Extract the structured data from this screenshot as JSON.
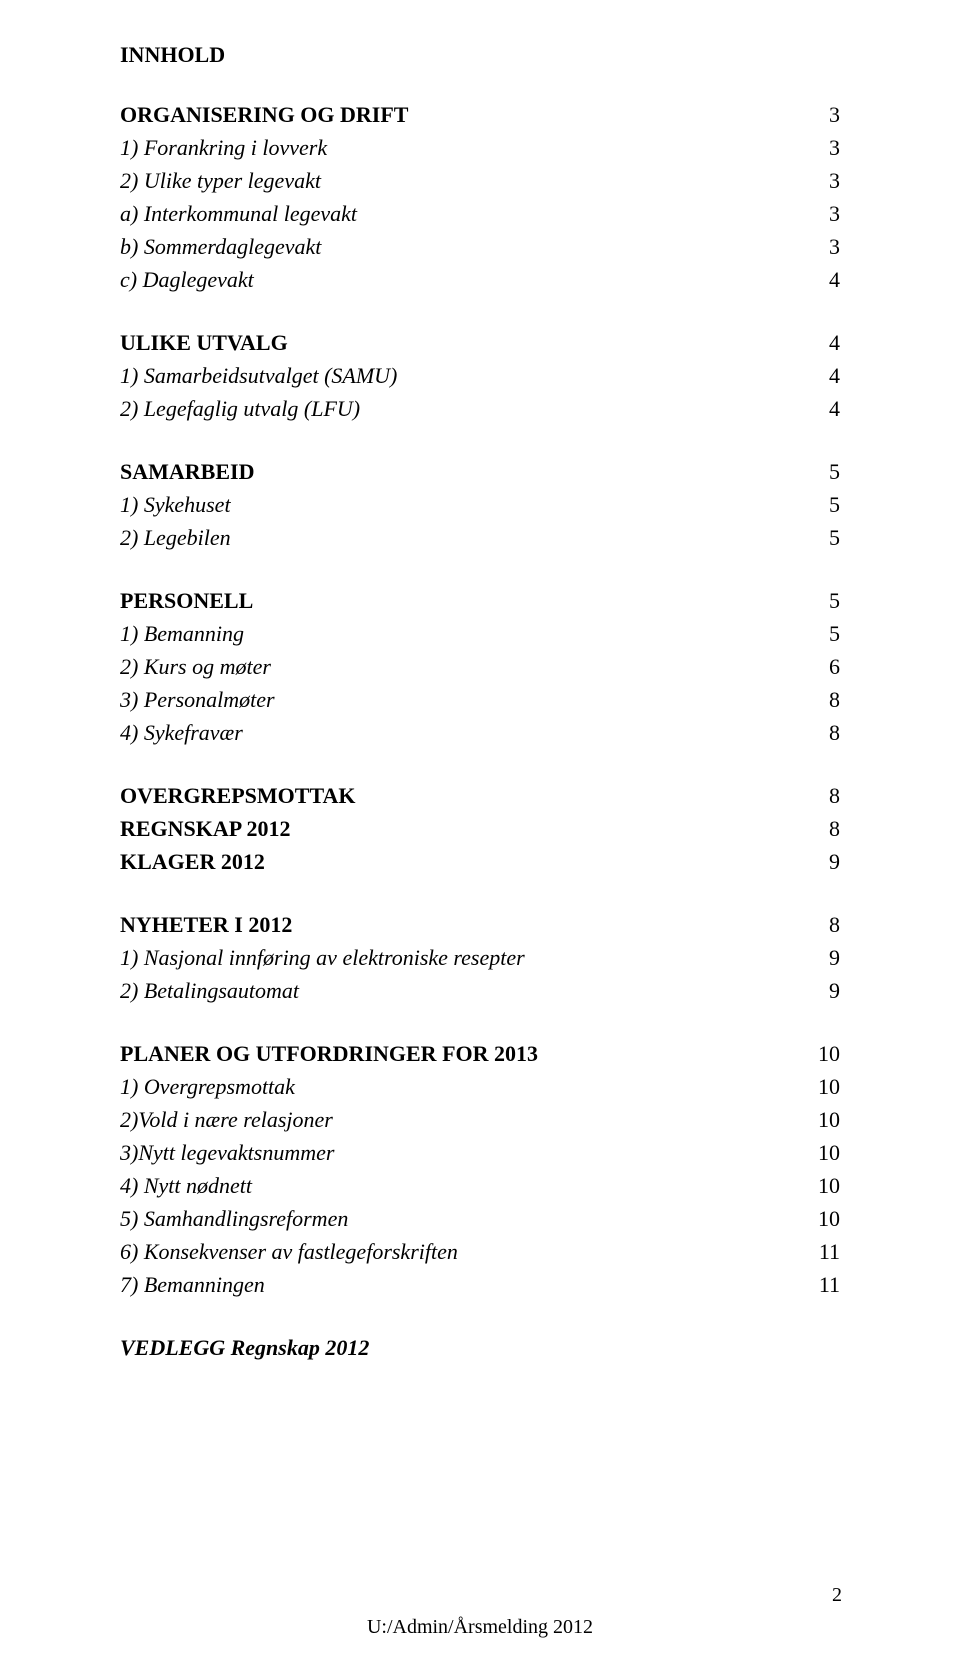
{
  "title": "INNHOLD",
  "sections": [
    {
      "type": "header",
      "label": "ORGANISERING OG DRIFT",
      "page": "3"
    },
    {
      "type": "item",
      "label": "1) Forankring i lovverk",
      "page": "3"
    },
    {
      "type": "item",
      "label": "2) Ulike typer legevakt",
      "page": "3"
    },
    {
      "type": "item",
      "label": "a) Interkommunal legevakt",
      "page": "3"
    },
    {
      "type": "item",
      "label": "b) Sommerdaglegevakt",
      "page": "3"
    },
    {
      "type": "item",
      "label": "c) Daglegevakt",
      "page": "4"
    },
    {
      "type": "gap"
    },
    {
      "type": "header",
      "label": "ULIKE UTVALG",
      "page": "4"
    },
    {
      "type": "item",
      "label": "1) Samarbeidsutvalget (SAMU)",
      "page": "4"
    },
    {
      "type": "item",
      "label": "2) Legefaglig utvalg (LFU)",
      "page": "4"
    },
    {
      "type": "gap"
    },
    {
      "type": "header",
      "label": "SAMARBEID",
      "page": "5"
    },
    {
      "type": "item",
      "label": "1) Sykehuset",
      "page": "5"
    },
    {
      "type": "item",
      "label": "2) Legebilen",
      "page": "5"
    },
    {
      "type": "gap"
    },
    {
      "type": "header",
      "label": "PERSONELL",
      "page": "5"
    },
    {
      "type": "item",
      "label": "1) Bemanning",
      "page": "5"
    },
    {
      "type": "item",
      "label": "2) Kurs og møter",
      "page": "6"
    },
    {
      "type": "item",
      "label": "3) Personalmøter",
      "page": "8"
    },
    {
      "type": "item",
      "label": "4) Sykefravær",
      "page": "8"
    },
    {
      "type": "gap"
    },
    {
      "type": "header",
      "label": "OVERGREPSMOTTAK",
      "page": "8"
    },
    {
      "type": "header",
      "label": "REGNSKAP 2012",
      "page": "8"
    },
    {
      "type": "header",
      "label": "KLAGER 2012",
      "page": "9"
    },
    {
      "type": "gap"
    },
    {
      "type": "header",
      "label": "NYHETER I 2012",
      "page": "8"
    },
    {
      "type": "item",
      "label": "1) Nasjonal innføring av elektroniske resepter",
      "page": "9"
    },
    {
      "type": "item",
      "label": "2) Betalingsautomat",
      "page": "9"
    },
    {
      "type": "gap"
    },
    {
      "type": "header",
      "label": "PLANER OG UTFORDRINGER FOR 2013",
      "page": "10"
    },
    {
      "type": "item",
      "label": "1) Overgrepsmottak",
      "page": "10"
    },
    {
      "type": "item",
      "label": "2)Vold i nære relasjoner",
      "page": "10"
    },
    {
      "type": "item",
      "label": "3)Nytt legevaktsnummer",
      "page": "10"
    },
    {
      "type": "item",
      "label": "4) Nytt nødnett",
      "page": "10"
    },
    {
      "type": "item",
      "label": "5) Samhandlingsreformen",
      "page": "10"
    },
    {
      "type": "item",
      "label": "6) Konsekvenser av fastlegeforskriften",
      "page": "11"
    },
    {
      "type": "item",
      "label": "7) Bemanningen",
      "page": "11"
    },
    {
      "type": "gap"
    },
    {
      "type": "bolditalic",
      "label": "VEDLEGG Regnskap 2012",
      "page": ""
    }
  ],
  "footer_text": "U:/Admin/Årsmelding 2012",
  "page_number": "2",
  "colors": {
    "text": "#000000",
    "background": "#ffffff"
  },
  "fonts": {
    "body": "Comic Sans MS",
    "footer": "Times New Roman",
    "title_size_pt": 16,
    "body_size_pt": 16,
    "footer_size_pt": 14
  }
}
